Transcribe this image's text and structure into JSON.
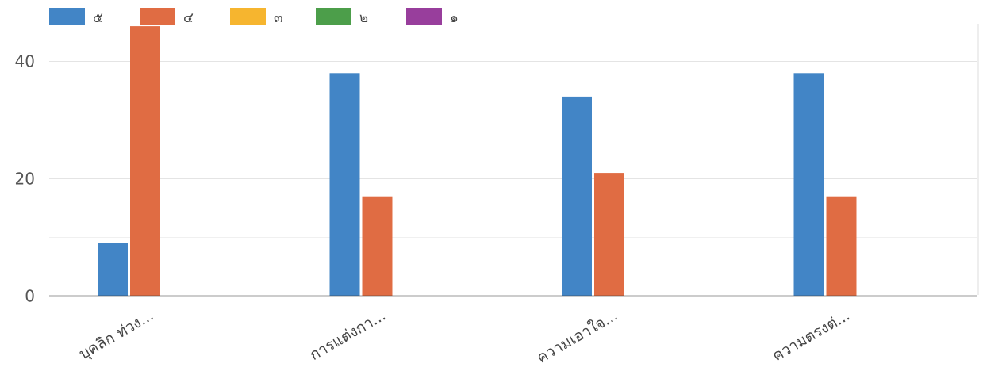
{
  "chart_data": {
    "type": "bar",
    "title": "",
    "xlabel": "",
    "ylabel": "",
    "categories": [
      "บุคลิก ท่วง...",
      "การแต่งกา...",
      "ความเอาใจ...",
      "ความตรงต่..."
    ],
    "series": [
      {
        "name": "๕",
        "color": "#4285c6",
        "values": [
          9,
          38,
          34,
          38
        ]
      },
      {
        "name": "๔",
        "color": "#e06c43",
        "values": [
          46,
          17,
          21,
          17
        ]
      },
      {
        "name": "๓",
        "color": "#f6b52f",
        "values": [
          0,
          0,
          0,
          0
        ]
      },
      {
        "name": "๒",
        "color": "#4c9e4a",
        "values": [
          0,
          0,
          0,
          0
        ]
      },
      {
        "name": "๑",
        "color": "#983e9c",
        "values": [
          0,
          0,
          0,
          0
        ]
      }
    ],
    "ylim": [
      0,
      46
    ],
    "yticks": [
      0,
      20,
      40
    ],
    "grid": true,
    "legend_position": "top-left"
  }
}
